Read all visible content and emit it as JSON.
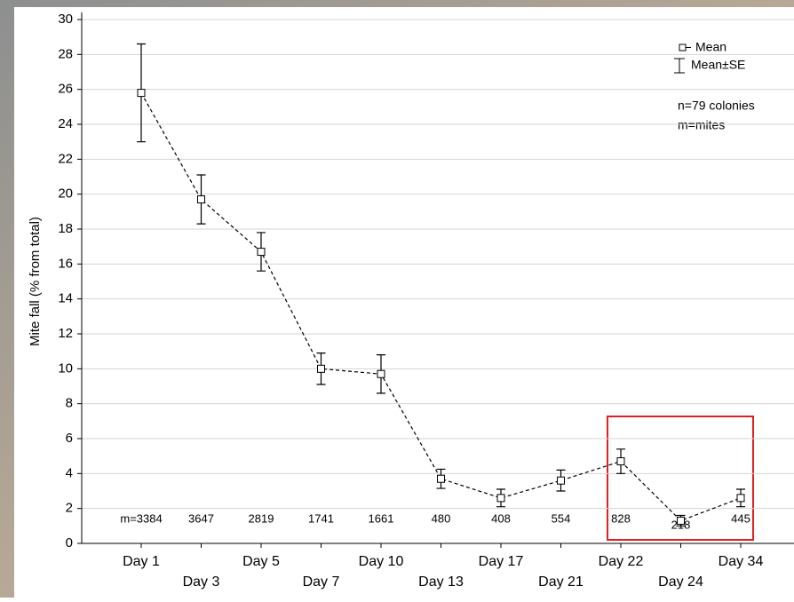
{
  "chart_data": {
    "type": "line",
    "y_label": "Mite fall (% from total)",
    "categories": [
      "Day 1",
      "Day 3",
      "Day 5",
      "Day 7",
      "Day 10",
      "Day 13",
      "Day 17",
      "Day 21",
      "Day 22",
      "Day 24",
      "Day 34"
    ],
    "series": [
      {
        "name": "Mean",
        "error_name": "Mean±SE",
        "color": "#000000",
        "values": [
          25.8,
          19.7,
          16.7,
          10.0,
          9.7,
          3.7,
          2.6,
          3.6,
          4.7,
          1.3,
          2.6
        ],
        "errors": [
          2.8,
          1.4,
          1.1,
          0.9,
          1.1,
          0.55,
          0.5,
          0.6,
          0.7,
          0.3,
          0.5
        ]
      }
    ],
    "mite_counts": [
      "m=3384",
      "3647",
      "2819",
      "1741",
      "1661",
      "480",
      "408",
      "554",
      "828",
      "218",
      "445"
    ],
    "annotations": [
      "n=79 colonies",
      "m=mites"
    ],
    "ylim": [
      0,
      30
    ],
    "yticks": [
      0,
      2,
      4,
      6,
      8,
      10,
      12,
      14,
      16,
      18,
      20,
      22,
      24,
      26,
      28,
      30
    ],
    "grid": true
  }
}
